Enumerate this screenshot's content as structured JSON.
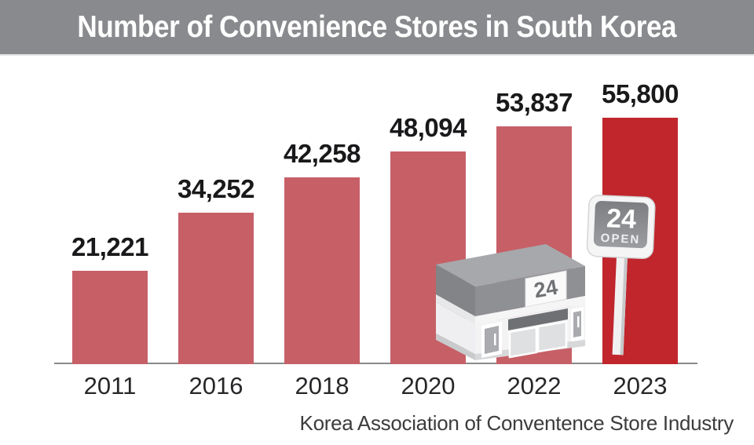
{
  "header": {
    "title": "Number of Convenience Stores in South Korea"
  },
  "chart_data": {
    "type": "bar",
    "categories": [
      "2011",
      "2016",
      "2018",
      "2020",
      "2022",
      "2023"
    ],
    "values": [
      21221,
      34252,
      42258,
      48094,
      53837,
      55800
    ],
    "value_labels": [
      "21,221",
      "34,252",
      "42,258",
      "48,094",
      "53,837",
      "55,800"
    ],
    "title": "Number of Convenience Stores in South Korea",
    "xlabel": "",
    "ylabel": "",
    "ylim": [
      0,
      55800
    ],
    "grid": false,
    "legend": false,
    "highlight_index": 5,
    "annotation": "Last bar (2023) shown in bright red; convenience-store illustration with 24 / OPEN signs overlaps the right-side bars"
  },
  "colors": {
    "bar": "#C75F67",
    "highlight_bar": "#C0262C",
    "header_bg": "#898A8D",
    "title_text": "#FFFFFF",
    "axis_line": "#8A8A8D",
    "value_text": "#19191B",
    "year_text": "#29262A",
    "source_text": "#3C3C3E"
  },
  "illustration": {
    "store_roof_sign": "24",
    "pole_sign_number": "24",
    "pole_sign_label": "OPEN"
  },
  "footer": {
    "source": "Korea Association of Conventence Store Industry"
  }
}
